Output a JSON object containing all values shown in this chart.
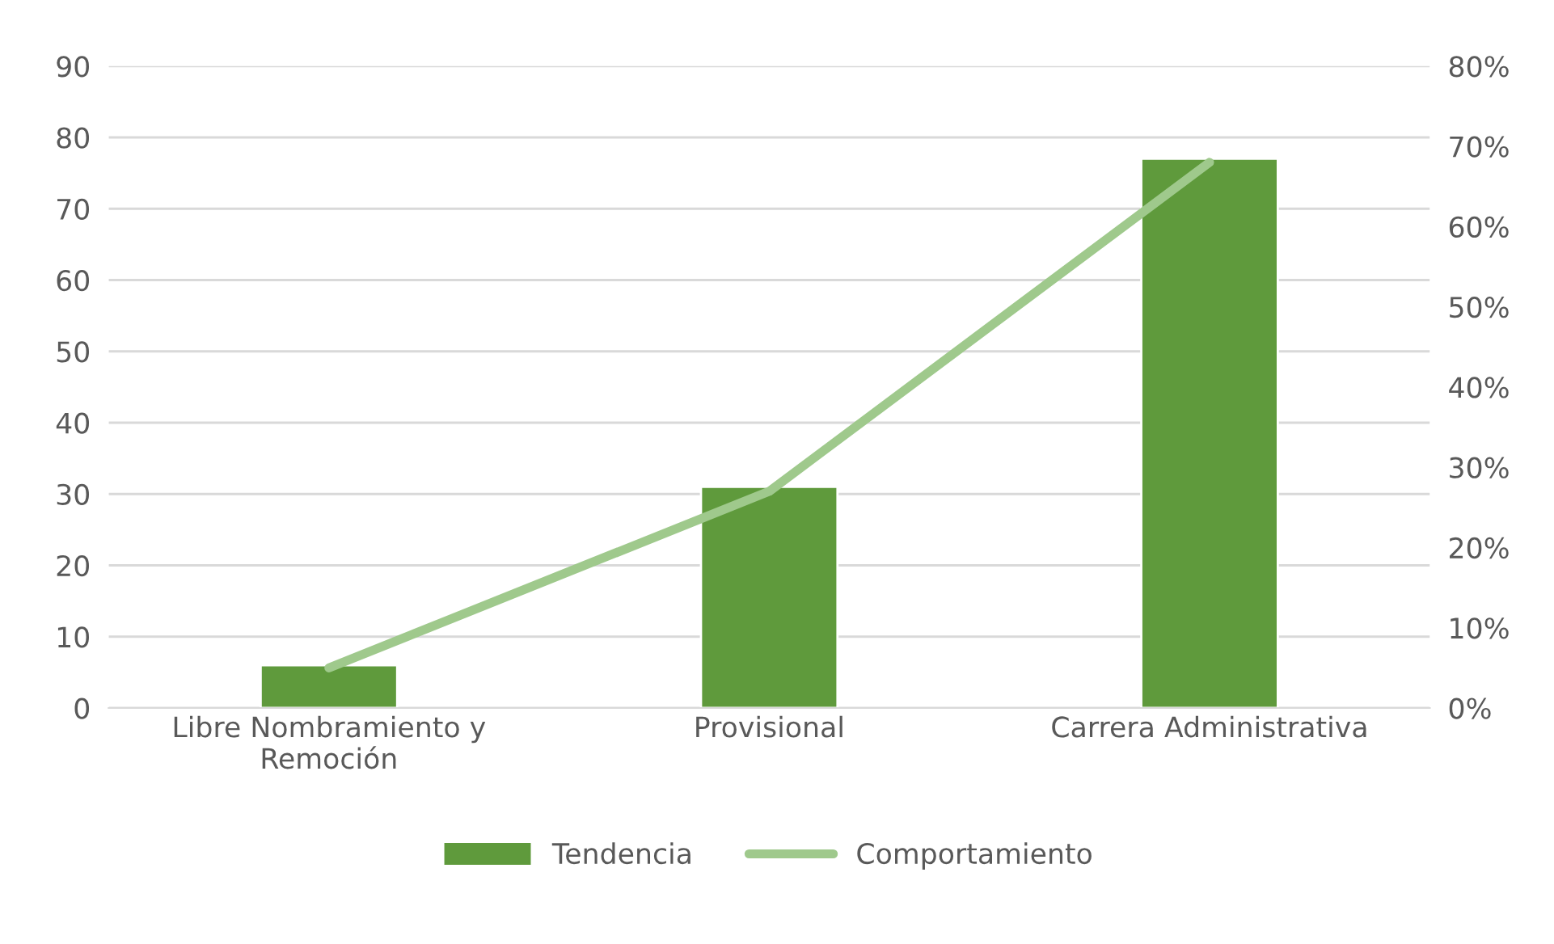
{
  "chart_data": {
    "type": "bar",
    "categories": [
      "Libre Nombramiento y\nRemoción",
      "Provisional",
      "Carrera Administrativa"
    ],
    "series": [
      {
        "name": "Tendencia",
        "color": "#5f9a3c",
        "values": [
          6,
          31,
          77
        ]
      },
      {
        "name": "Comportamiento",
        "type": "line",
        "axis": "y2",
        "color": "#9fc98c",
        "values": [
          5,
          27,
          68
        ]
      }
    ],
    "ylim": [
      0,
      90
    ],
    "yticks": [
      0,
      10,
      20,
      30,
      40,
      50,
      60,
      70,
      80,
      90
    ],
    "y2lim": [
      0,
      80
    ],
    "y2ticks": [
      {
        "value": 0,
        "label": "0%"
      },
      {
        "value": 10,
        "label": "10%"
      },
      {
        "value": 20,
        "label": "20%"
      },
      {
        "value": 30,
        "label": "30%"
      },
      {
        "value": 40,
        "label": "40%"
      },
      {
        "value": 50,
        "label": "50%"
      },
      {
        "value": 60,
        "label": "60%"
      },
      {
        "value": 70,
        "label": "70%"
      },
      {
        "value": 80,
        "label": "80%"
      }
    ],
    "grid": "y",
    "legend": "bottom",
    "line_style": "solid",
    "marker": "none"
  }
}
